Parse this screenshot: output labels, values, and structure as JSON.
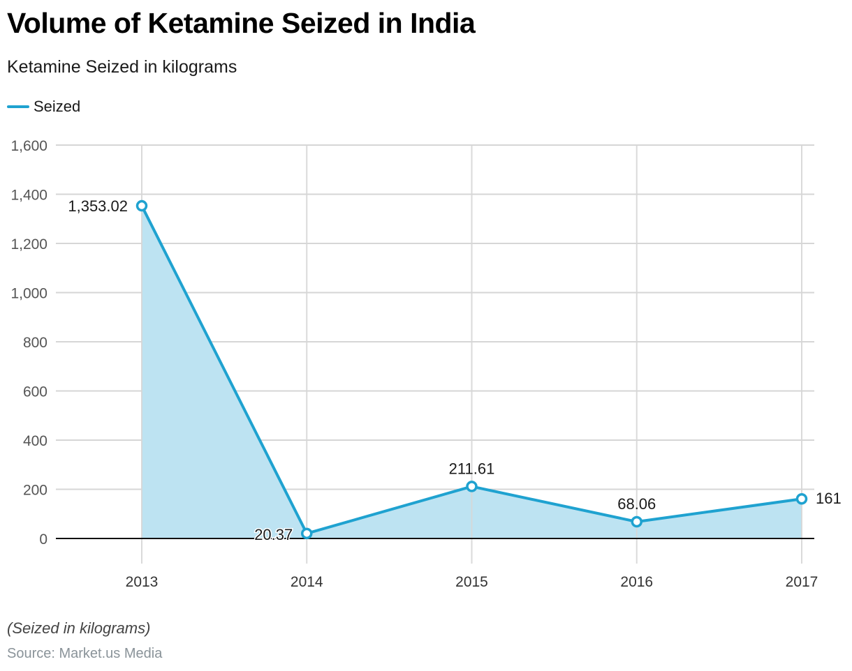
{
  "title": "Volume of Ketamine Seized in India",
  "subtitle": "Ketamine Seized in kilograms",
  "note": "(Seized in kilograms)",
  "source": "Source: Market.us Media",
  "colors": {
    "line": "#1fa2d0",
    "fill": "#bde3f2",
    "grid": "#d6d6d6",
    "axis": "#111111",
    "tick_text": "#555555",
    "label_text": "#1a1a1a"
  },
  "chart_data": {
    "type": "area",
    "title": "Volume of Ketamine Seized in India",
    "subtitle": "Ketamine Seized in kilograms",
    "xlabel": "",
    "ylabel": "",
    "categories": [
      "2013",
      "2014",
      "2015",
      "2016",
      "2017"
    ],
    "series": [
      {
        "name": "Seized",
        "values": [
          1353.02,
          20.37,
          211.61,
          68.06,
          161
        ],
        "labels": [
          "1,353.02",
          "20.37",
          "211.61",
          "68.06",
          "161"
        ]
      }
    ],
    "ylim": [
      0,
      1600
    ],
    "yticks": [
      0,
      200,
      400,
      600,
      800,
      1000,
      1200,
      1400,
      1600
    ],
    "ytick_labels": [
      "0",
      "200",
      "400",
      "600",
      "800",
      "1,000",
      "1,200",
      "1,400",
      "1,600"
    ],
    "grid": true,
    "legend": "top-left"
  }
}
